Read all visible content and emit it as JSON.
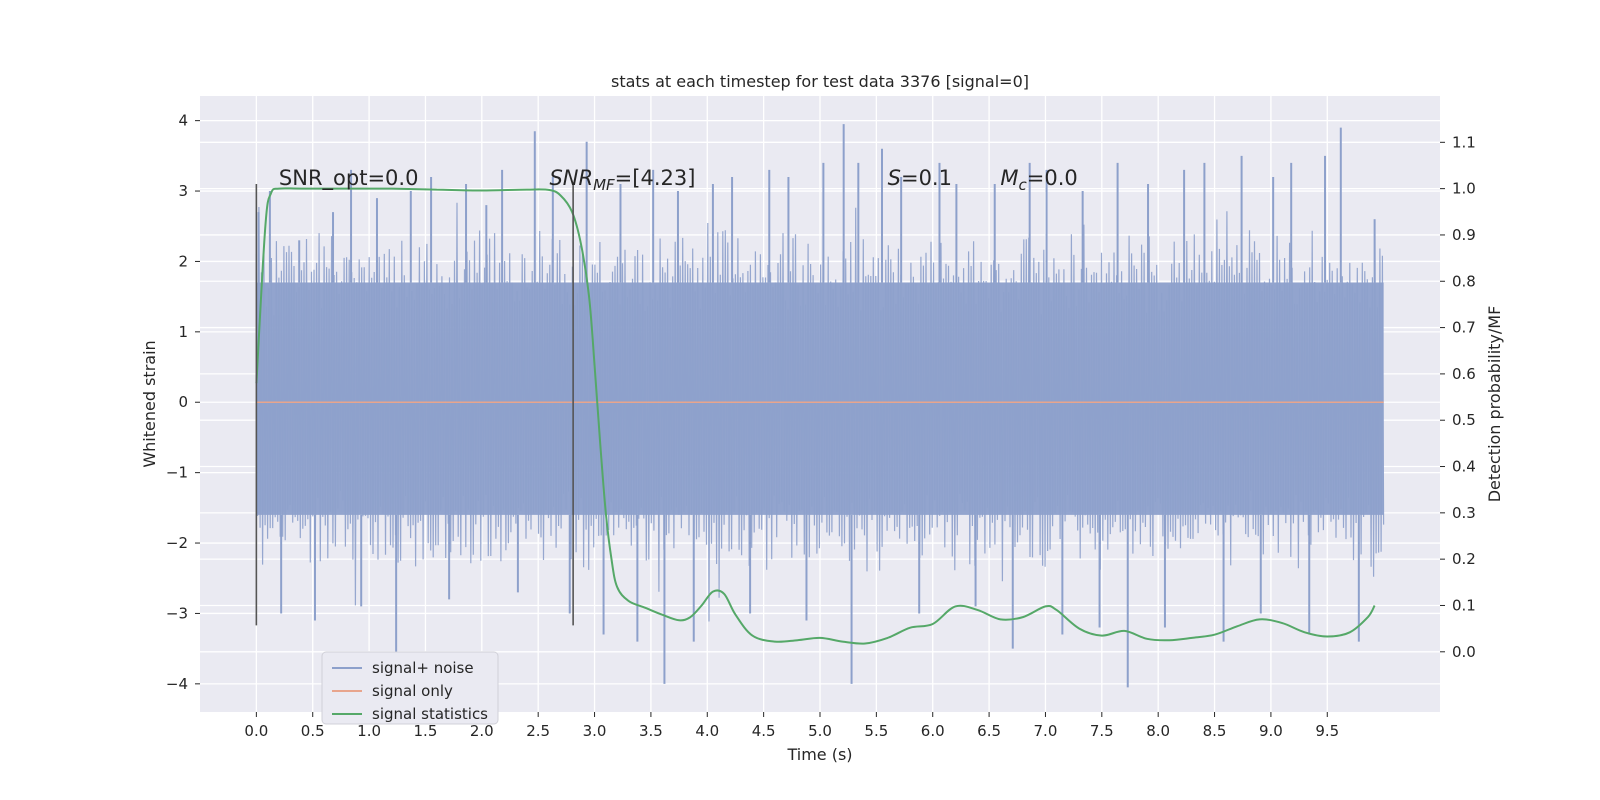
{
  "chart_data": {
    "type": "line",
    "title": "stats at each timestep for test data 3376 [signal=0]",
    "xlabel": "Time (s)",
    "ylabel": "Whitened strain",
    "y2label": "Detection probability/MF",
    "xlim": [
      -0.5,
      10.5
    ],
    "ylim": [
      -4.4,
      4.35
    ],
    "y2lim": [
      -0.13,
      1.2
    ],
    "xticks": [
      0.0,
      0.5,
      1.0,
      1.5,
      2.0,
      2.5,
      3.0,
      3.5,
      4.0,
      4.5,
      5.0,
      5.5,
      6.0,
      6.5,
      7.0,
      7.5,
      8.0,
      8.5,
      9.0,
      9.5
    ],
    "xtick_labels": [
      "0.0",
      "0.5",
      "1.0",
      "1.5",
      "2.0",
      "2.5",
      "3.0",
      "3.5",
      "4.0",
      "4.5",
      "5.0",
      "5.5",
      "6.0",
      "6.5",
      "7.0",
      "7.5",
      "8.0",
      "8.5",
      "9.0",
      "9.5"
    ],
    "yticks": [
      4,
      3,
      2,
      1,
      0,
      -1,
      -2,
      -3,
      -4
    ],
    "ytick_labels": [
      "4",
      "3",
      "2",
      "1",
      "0",
      "−1",
      "−2",
      "−3",
      "−4"
    ],
    "y2ticks": [
      1.1,
      1.0,
      0.9,
      0.8,
      0.7,
      0.6,
      0.5,
      0.4,
      0.3,
      0.2,
      0.1,
      0.0
    ],
    "y2tick_labels": [
      "1.1",
      "1.0",
      "0.9",
      "0.8",
      "0.7",
      "0.6",
      "0.5",
      "0.4",
      "0.3",
      "0.2",
      "0.1",
      "0.0"
    ],
    "grid": true,
    "legend_position": "lower-left",
    "annotations": [
      {
        "base": "SNR_opt=0.0",
        "sub": "",
        "rest": "",
        "italic": false,
        "x": 0.2
      },
      {
        "base": "SNR",
        "sub": "MF",
        "rest": "=[4.23]",
        "italic": true,
        "x": 2.6
      },
      {
        "base": "S",
        "sub": "",
        "rest": "=0.1",
        "italic": true,
        "x": 5.6
      },
      {
        "base": "M",
        "sub": "c",
        "rest": "=0.0",
        "italic": true,
        "x": 6.6
      }
    ],
    "vertical_markers": [
      0.0,
      2.81
    ],
    "marker_y_range": [
      -3.17,
      3.1
    ],
    "series": [
      {
        "name": "signal+ noise",
        "color": "#8da0cb",
        "axis": "left",
        "x_range": [
          0.0,
          10.0
        ],
        "n_points": 900,
        "envelope_low": -1.6,
        "envelope_high": 1.7,
        "peak_x": [
          0.02,
          0.12,
          0.22,
          0.38,
          0.52,
          0.68,
          0.84,
          0.93,
          1.07,
          1.24,
          1.37,
          1.55,
          1.71,
          1.86,
          2.04,
          2.18,
          2.32,
          2.47,
          2.63,
          2.78,
          2.93,
          3.08,
          3.23,
          3.38,
          3.52,
          3.62,
          3.74,
          3.88,
          4.05,
          4.22,
          4.38,
          4.55,
          4.72,
          4.88,
          5.03,
          5.21,
          5.28,
          5.34,
          5.55,
          5.72,
          5.88,
          6.06,
          6.21,
          6.38,
          6.55,
          6.71,
          6.86,
          7.01,
          7.15,
          7.33,
          7.48,
          7.64,
          7.73,
          7.91,
          8.06,
          8.23,
          8.41,
          8.58,
          8.74,
          8.91,
          9.02,
          9.18,
          9.34,
          9.48,
          9.62,
          9.78,
          9.92
        ],
        "peak_y": [
          2.7,
          3.0,
          -3.0,
          2.3,
          -3.1,
          2.7,
          3.3,
          -2.9,
          2.9,
          -3.6,
          3.0,
          3.2,
          -2.8,
          3.1,
          2.8,
          3.3,
          -2.7,
          3.85,
          3.2,
          -3.0,
          3.7,
          -3.3,
          3.1,
          -3.4,
          3.3,
          -4.0,
          3.0,
          -3.4,
          3.1,
          3.2,
          -3.0,
          3.3,
          3.2,
          -3.1,
          3.4,
          3.95,
          -4.0,
          3.4,
          3.6,
          3.2,
          -3.0,
          3.4,
          3.1,
          -2.9,
          3.1,
          -3.5,
          3.4,
          3.3,
          -3.3,
          3.0,
          -3.2,
          3.4,
          -4.05,
          3.1,
          -3.2,
          3.3,
          3.4,
          -3.4,
          3.5,
          -3.0,
          3.2,
          3.4,
          -3.3,
          3.5,
          3.9,
          -3.4,
          2.6
        ]
      },
      {
        "name": "signal only",
        "color": "#e8a58d",
        "axis": "left",
        "x": [
          0.0,
          10.0
        ],
        "y": [
          0.0,
          0.0
        ]
      },
      {
        "name": "signal statistics",
        "color": "#55a868",
        "axis": "right",
        "x": [
          0.0,
          0.08,
          0.13,
          0.2,
          0.4,
          0.8,
          1.2,
          1.6,
          2.0,
          2.4,
          2.6,
          2.7,
          2.8,
          2.88,
          2.95,
          3.0,
          3.05,
          3.1,
          3.15,
          3.2,
          3.3,
          3.45,
          3.6,
          3.75,
          3.85,
          3.95,
          4.05,
          4.15,
          4.25,
          4.4,
          4.6,
          4.8,
          5.0,
          5.2,
          5.4,
          5.6,
          5.8,
          6.0,
          6.2,
          6.4,
          6.6,
          6.8,
          7.0,
          7.1,
          7.3,
          7.5,
          7.7,
          7.9,
          8.1,
          8.3,
          8.5,
          8.7,
          8.9,
          9.1,
          9.3,
          9.5,
          9.7,
          9.86,
          9.92
        ],
        "y": [
          0.58,
          0.92,
          0.99,
          1.0,
          1.0,
          1.0,
          1.0,
          0.998,
          0.996,
          0.998,
          0.997,
          0.985,
          0.95,
          0.88,
          0.77,
          0.62,
          0.45,
          0.3,
          0.2,
          0.14,
          0.11,
          0.095,
          0.08,
          0.068,
          0.075,
          0.1,
          0.13,
          0.125,
          0.08,
          0.035,
          0.022,
          0.025,
          0.03,
          0.022,
          0.018,
          0.03,
          0.052,
          0.06,
          0.098,
          0.09,
          0.07,
          0.075,
          0.098,
          0.09,
          0.05,
          0.035,
          0.045,
          0.028,
          0.025,
          0.03,
          0.037,
          0.055,
          0.07,
          0.062,
          0.042,
          0.033,
          0.042,
          0.075,
          0.1
        ]
      }
    ]
  }
}
